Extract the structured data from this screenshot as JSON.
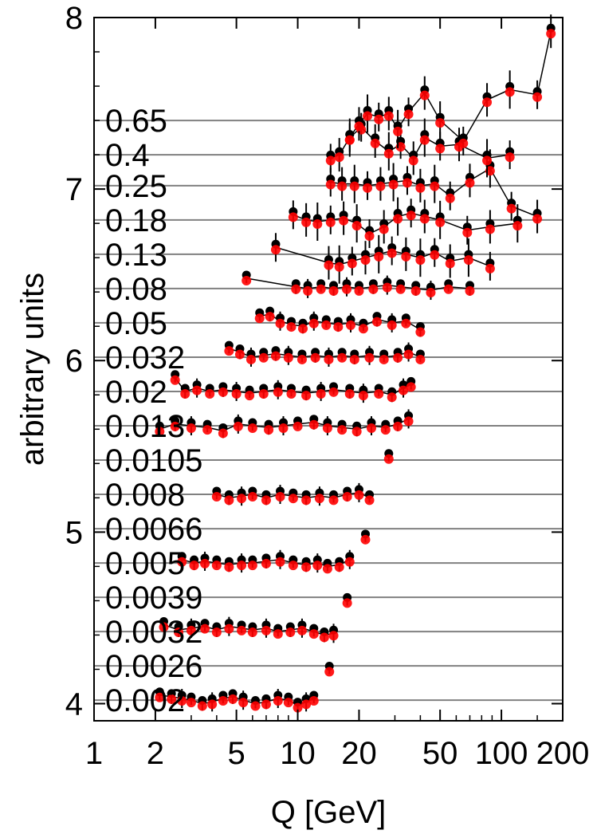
{
  "chart_data": {
    "type": "scatter",
    "title": "",
    "xlabel": "Q [GeV]",
    "ylabel": "arbitrary units",
    "xscale": "log",
    "xlim": [
      1,
      200
    ],
    "ylim": [
      3.9,
      8
    ],
    "xticks": [
      "1",
      "2",
      "5",
      "10",
      "20",
      "50",
      "100",
      "200"
    ],
    "yticks": [
      "4",
      "5",
      "6",
      "7",
      "8"
    ],
    "grid": "horizontal reference line per x bin",
    "colors": {
      "data": "#000000",
      "theory": "#ff0000",
      "reference_line": "#808080"
    },
    "bins": [
      {
        "label": "0.002",
        "baseline": 4.02,
        "x": [
          2.1,
          2.4,
          2.7,
          3,
          3.4,
          3.8,
          4.3,
          4.8,
          5.4,
          6.2,
          7,
          8,
          9,
          10,
          11,
          12
        ],
        "y": [
          4.05,
          4.04,
          4.03,
          4.02,
          4.0,
          4.01,
          4.03,
          4.04,
          4.02,
          4.0,
          4.01,
          4.03,
          4.02,
          3.99,
          4.01,
          4.03
        ]
      },
      {
        "label": "0.0026",
        "baseline": 4.22,
        "x": [
          14.3
        ],
        "y": [
          4.2
        ]
      },
      {
        "label": "0.0032",
        "baseline": 4.42,
        "x": [
          2.2,
          2.6,
          3,
          3.5,
          4,
          4.6,
          5.3,
          6,
          7,
          8,
          9.2,
          10.5,
          12,
          13.5,
          15
        ],
        "y": [
          4.46,
          4.43,
          4.44,
          4.45,
          4.43,
          4.45,
          4.44,
          4.43,
          4.44,
          4.42,
          4.43,
          4.44,
          4.42,
          4.4,
          4.41
        ]
      },
      {
        "label": "0.0039",
        "baseline": 4.62,
        "x": [
          17.5
        ],
        "y": [
          4.6
        ]
      },
      {
        "label": "0.005",
        "baseline": 4.82,
        "x": [
          2.7,
          3.1,
          3.5,
          4,
          4.6,
          5.3,
          6,
          7,
          8.2,
          9.5,
          11,
          12.5,
          14,
          16,
          18
        ],
        "y": [
          4.84,
          4.82,
          4.83,
          4.82,
          4.81,
          4.82,
          4.82,
          4.83,
          4.84,
          4.82,
          4.81,
          4.82,
          4.8,
          4.81,
          4.84
        ]
      },
      {
        "label": "0.0066",
        "baseline": 5.02,
        "x": [
          21.5
        ],
        "y": [
          4.97
        ]
      },
      {
        "label": "0.008",
        "baseline": 5.22,
        "x": [
          4,
          4.6,
          5.3,
          6,
          7,
          8.2,
          9.5,
          11,
          12.8,
          15,
          17.5,
          20,
          22.5
        ],
        "y": [
          5.22,
          5.2,
          5.21,
          5.22,
          5.2,
          5.22,
          5.21,
          5.2,
          5.21,
          5.2,
          5.22,
          5.23,
          5.2
        ]
      },
      {
        "label": "0.0105",
        "baseline": 5.42,
        "x": [
          28
        ],
        "y": [
          5.44
        ]
      },
      {
        "label": "0.013",
        "baseline": 5.62,
        "x": [
          2.1,
          2.5,
          3,
          3.6,
          4.3,
          5.1,
          6,
          7.2,
          8.5,
          10,
          12,
          14,
          16.5,
          19.5,
          23,
          27,
          31,
          35
        ],
        "y": [
          5.6,
          5.63,
          5.62,
          5.61,
          5.59,
          5.63,
          5.62,
          5.61,
          5.62,
          5.63,
          5.64,
          5.62,
          5.61,
          5.6,
          5.62,
          5.61,
          5.63,
          5.66
        ]
      },
      {
        "label": "0.02",
        "baseline": 5.82,
        "x": [
          2.5,
          2.8,
          3.2,
          3.7,
          4.3,
          5,
          5.8,
          6.8,
          8,
          9.3,
          11,
          13,
          15,
          18,
          21,
          25,
          29,
          33,
          36
        ],
        "y": [
          5.9,
          5.82,
          5.84,
          5.82,
          5.83,
          5.82,
          5.81,
          5.82,
          5.83,
          5.82,
          5.81,
          5.82,
          5.83,
          5.82,
          5.81,
          5.82,
          5.8,
          5.84,
          5.86
        ]
      },
      {
        "label": "0.032",
        "baseline": 6.02,
        "x": [
          4.6,
          5.2,
          5.9,
          6.8,
          7.8,
          9,
          10.5,
          12.2,
          14.2,
          16.5,
          19,
          22.5,
          26.5,
          31,
          35,
          40
        ],
        "y": [
          6.07,
          6.05,
          6.02,
          6.03,
          6.04,
          6.03,
          6.02,
          6.03,
          6.02,
          6.03,
          6.02,
          6.03,
          6.02,
          6.03,
          6.05,
          6.02
        ]
      },
      {
        "label": "0.05",
        "baseline": 6.22,
        "x": [
          6.5,
          7.3,
          8.2,
          9.3,
          10.6,
          12,
          13.8,
          15.8,
          18.2,
          21,
          24.5,
          29,
          34,
          40
        ],
        "y": [
          6.26,
          6.27,
          6.23,
          6.21,
          6.2,
          6.23,
          6.22,
          6.21,
          6.22,
          6.2,
          6.24,
          6.22,
          6.23,
          6.18
        ]
      },
      {
        "label": "0.08",
        "baseline": 6.42,
        "x": [
          5.6,
          9.8,
          11.2,
          13,
          15,
          17.4,
          20,
          23.5,
          27.5,
          32,
          38,
          45,
          55,
          70
        ],
        "y": [
          6.48,
          6.43,
          6.42,
          6.43,
          6.42,
          6.43,
          6.42,
          6.43,
          6.44,
          6.43,
          6.42,
          6.41,
          6.43,
          6.42
        ]
      },
      {
        "label": "0.13",
        "baseline": 6.62,
        "x": [
          7.8,
          14.2,
          16,
          18.5,
          21.5,
          25,
          29,
          34,
          40,
          47,
          56,
          69,
          88
        ],
        "y": [
          6.66,
          6.57,
          6.56,
          6.58,
          6.6,
          6.62,
          6.64,
          6.62,
          6.6,
          6.63,
          6.58,
          6.6,
          6.55
        ]
      },
      {
        "label": "0.18",
        "baseline": 6.82,
        "x": [
          9.5,
          11,
          12.5,
          14.5,
          16.8,
          19.5,
          22.5,
          26.5,
          31,
          36,
          42,
          50,
          68,
          88,
          120
        ],
        "y": [
          6.85,
          6.82,
          6.81,
          6.82,
          6.83,
          6.8,
          6.74,
          6.78,
          6.84,
          6.86,
          6.84,
          6.82,
          6.76,
          6.78,
          6.8
        ]
      },
      {
        "label": "0.25",
        "baseline": 7.02,
        "x": [
          14.5,
          16.5,
          19,
          22,
          25.5,
          29.5,
          34.5,
          40,
          47,
          56,
          70,
          88,
          112,
          150
        ],
        "y": [
          7.04,
          7.03,
          7.03,
          7.02,
          7.03,
          7.04,
          7.05,
          7.02,
          7.03,
          6.96,
          7.05,
          7.12,
          6.9,
          6.84
        ]
      },
      {
        "label": "0.4",
        "baseline": 7.2,
        "x": [
          14.5,
          16,
          18,
          20.5,
          24,
          28,
          32,
          37,
          42,
          50,
          62,
          85,
          110
        ],
        "y": [
          7.18,
          7.2,
          7.3,
          7.36,
          7.28,
          7.22,
          7.26,
          7.18,
          7.3,
          7.25,
          7.26,
          7.18,
          7.2
        ]
      },
      {
        "label": "0.65",
        "baseline": 7.4,
        "x": [
          18,
          20,
          22,
          25,
          28,
          31,
          35,
          42,
          50,
          65,
          85,
          110,
          150,
          175
        ],
        "y": [
          7.3,
          7.38,
          7.44,
          7.42,
          7.44,
          7.35,
          7.45,
          7.56,
          7.4,
          7.28,
          7.52,
          7.58,
          7.55,
          7.92
        ]
      }
    ]
  }
}
